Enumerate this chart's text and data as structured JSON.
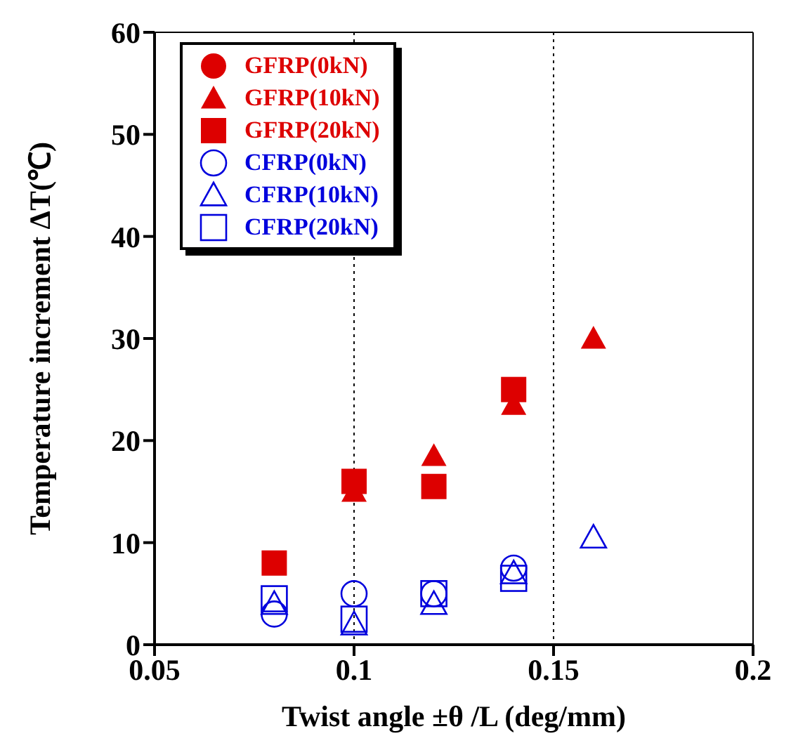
{
  "chart_data": {
    "type": "scatter",
    "xlabel": "Twist angle ±θ /L (deg/mm)",
    "ylabel": "Temperature increment ΔT(℃)",
    "x": [
      0.08,
      0.1,
      0.12,
      0.14,
      0.16
    ],
    "series": [
      {
        "name": "GFRP(0kN)",
        "color": "#dd0000",
        "marker": "circle",
        "values": [
          null,
          null,
          null,
          null,
          null
        ]
      },
      {
        "name": "GFRP(10kN)",
        "color": "#dd0000",
        "marker": "triangle",
        "values": [
          null,
          15,
          18.5,
          23.5,
          30
        ]
      },
      {
        "name": "GFRP(20kN)",
        "color": "#dd0000",
        "marker": "square",
        "values": [
          8,
          16,
          15.5,
          25,
          null
        ]
      },
      {
        "name": "CFRP(0kN)",
        "color": "#0000dd",
        "marker": "circle-open",
        "values": [
          3,
          5,
          5,
          7.5,
          null
        ]
      },
      {
        "name": "CFRP(10kN)",
        "color": "#0000dd",
        "marker": "triangle-open",
        "values": [
          4,
          2,
          4,
          7,
          10.5
        ]
      },
      {
        "name": "CFRP(20kN)",
        "color": "#0000dd",
        "marker": "square-open",
        "values": [
          4.5,
          2.5,
          5,
          6.5,
          null
        ]
      }
    ],
    "xlim": [
      0.05,
      0.2
    ],
    "xticks": [
      0.05,
      0.1,
      0.15,
      0.2
    ],
    "ylim": [
      0,
      60
    ],
    "yticks": [
      0,
      10,
      20,
      30,
      40,
      50,
      60
    ],
    "grid": "x",
    "legend": "top left"
  }
}
